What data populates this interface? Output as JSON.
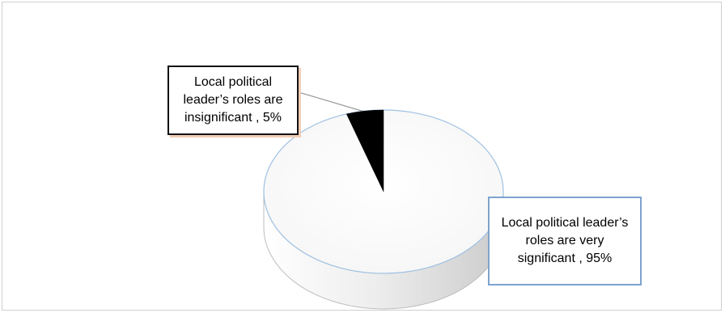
{
  "chart_data": {
    "type": "pie",
    "style": "3d",
    "title": "",
    "slices": [
      {
        "label": "Local political leader’s roles are insignificant , 5%",
        "value": 5,
        "color": "#000000"
      },
      {
        "label": "Local political leader’s roles are very significant , 95%",
        "value": 95,
        "color": "#ffffff"
      }
    ]
  },
  "colors": {
    "frame_border": "#cfcfcf",
    "pie_edge": "#9fc1e3",
    "callout_insig_border": "#111111",
    "callout_insig_shadow": "#f3cdb6",
    "callout_sig_border": "#7da3cf"
  }
}
